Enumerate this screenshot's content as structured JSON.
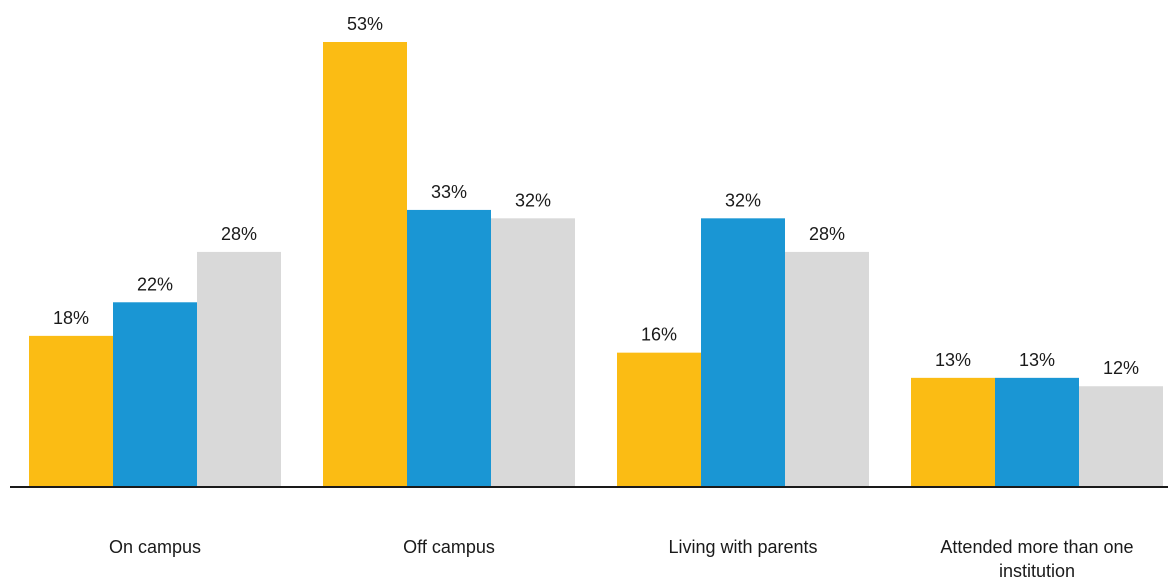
{
  "chart_data": {
    "type": "bar",
    "categories": [
      [
        "On campus"
      ],
      [
        "Off campus"
      ],
      [
        "Living with parents"
      ],
      [
        "Attended more than one",
        "institution"
      ]
    ],
    "series": [
      {
        "color": "#FBBC14",
        "values": [
          18,
          53,
          16,
          13
        ]
      },
      {
        "color": "#1A96D4",
        "values": [
          22,
          33,
          32,
          13
        ]
      },
      {
        "color": "#D9D9D9",
        "values": [
          28,
          32,
          28,
          12
        ]
      }
    ],
    "value_suffix": "%",
    "title": "",
    "xlabel": "",
    "ylabel": "",
    "ylim": [
      0,
      54
    ],
    "grid": false,
    "legend": "none",
    "data_labels": true
  }
}
